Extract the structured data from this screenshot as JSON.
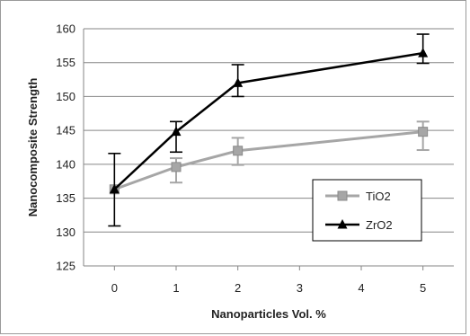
{
  "chart_data": {
    "type": "line",
    "title": "",
    "xlabel": "Nanoparticles Vol. %",
    "ylabel": "Nanocomposite  Strength",
    "x": [
      0,
      1,
      2,
      5
    ],
    "xlim": [
      -0.5,
      5.5
    ],
    "x_ticks": [
      "0",
      "1",
      "2",
      "3",
      "4",
      "5"
    ],
    "ylim": [
      125,
      160
    ],
    "y_ticks": [
      "125",
      "130",
      "135",
      "140",
      "145",
      "150",
      "155",
      "160"
    ],
    "grid": true,
    "legend_position": "right",
    "series": [
      {
        "name": "TiO2",
        "marker": "square",
        "color": "#a6a6a6",
        "values": [
          136.3,
          139.6,
          142.0,
          144.8
        ],
        "error_low": [
          136.3,
          137.3,
          139.9,
          142.1
        ],
        "error_high": [
          136.3,
          140.9,
          143.9,
          146.3
        ]
      },
      {
        "name": "ZrO2",
        "marker": "triangle",
        "color": "#000000",
        "values": [
          136.3,
          144.8,
          152.0,
          156.4
        ],
        "error_low": [
          130.9,
          141.8,
          150.0,
          154.9
        ],
        "error_high": [
          141.6,
          146.3,
          154.7,
          159.2
        ]
      }
    ]
  }
}
